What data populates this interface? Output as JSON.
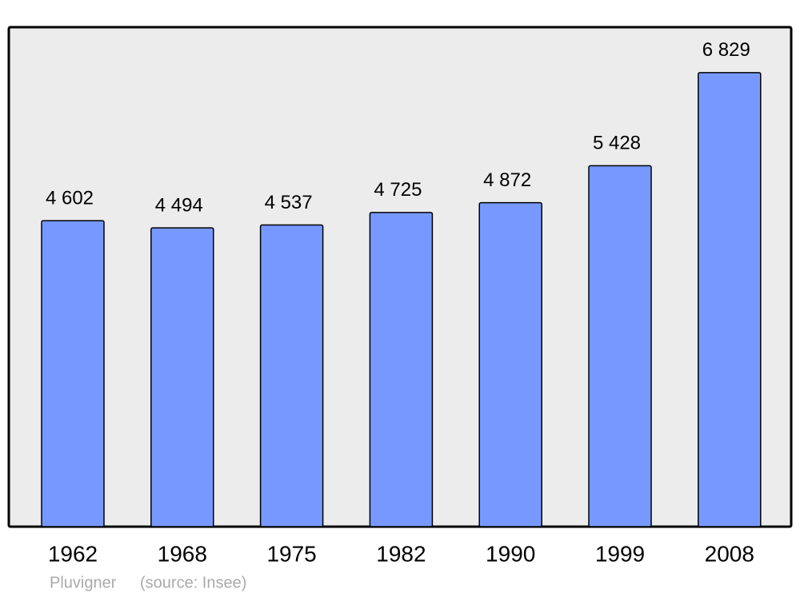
{
  "chart_data": {
    "type": "bar",
    "title": "Pluvigner",
    "source": "(source: Insee)",
    "categories": [
      "1962",
      "1968",
      "1975",
      "1982",
      "1990",
      "1999",
      "2008"
    ],
    "values": [
      4602,
      4494,
      4537,
      4725,
      4872,
      5428,
      6829
    ],
    "value_labels": [
      "4 602",
      "4 494",
      "4 537",
      "4 725",
      "4 872",
      "5 428",
      "6 829"
    ],
    "color": "#7799ff",
    "ylim": [
      0,
      7500
    ]
  }
}
